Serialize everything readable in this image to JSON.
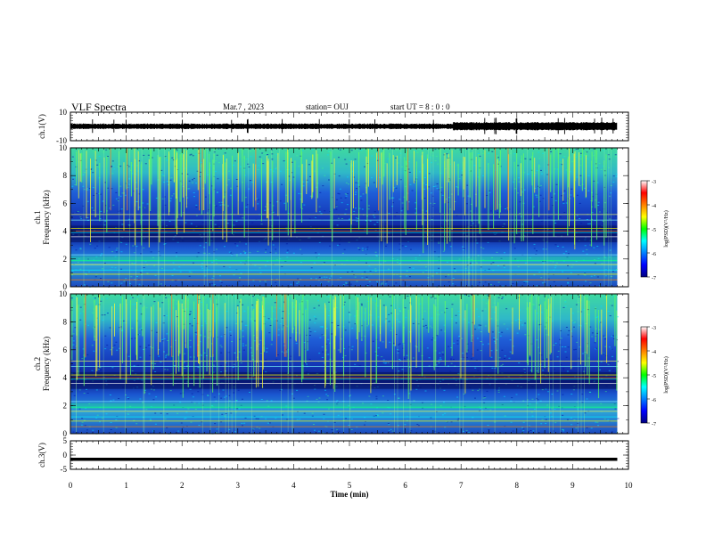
{
  "header": {
    "title": "VLF Spectra",
    "date": "Mar.7 , 2023",
    "station": "station= OUJ",
    "start_ut": "start  UT =  8 : 0  : 0"
  },
  "chart_data": [
    {
      "type": "line",
      "ylabel": "ch.1(V)",
      "ylim": [
        -10,
        10
      ],
      "y_ticks": [
        "10",
        "-10"
      ],
      "xlim": [
        0,
        10
      ],
      "x_range_data": [
        0,
        9.8
      ],
      "baseline": 0
    },
    {
      "type": "heatmap",
      "ylabel": "ch.1\nFrequency (kHz)",
      "ylabel_lines": [
        "ch.1",
        "Frequency (kHz)"
      ],
      "ylim": [
        0,
        10
      ],
      "y_ticks": [
        "0",
        "2",
        "4",
        "6",
        "8",
        "10"
      ],
      "xlim": [
        0,
        10
      ],
      "x_range_data": [
        0,
        9.8
      ],
      "colorbar": {
        "label": "log(PSD)(V²/Hz)",
        "range": [
          -7,
          -3
        ],
        "ticks": [
          "-3",
          "-4",
          "-5",
          "-6",
          "-7"
        ]
      }
    },
    {
      "type": "heatmap",
      "ylabel": "ch.2\nFrequency (kHz)",
      "ylabel_lines": [
        "ch.2",
        "Frequency (kHz)"
      ],
      "ylim": [
        0,
        10
      ],
      "y_ticks": [
        "0",
        "2",
        "4",
        "6",
        "8",
        "10"
      ],
      "xlim": [
        0,
        10
      ],
      "x_range_data": [
        0,
        9.8
      ],
      "colorbar": {
        "label": "log(PSD)(V²/Hz)",
        "range": [
          -7,
          -3
        ],
        "ticks": [
          "-3",
          "-4",
          "-5",
          "-6",
          "-7"
        ]
      }
    },
    {
      "type": "line",
      "ylabel": "ch.3(V)",
      "ylim": [
        -5,
        5
      ],
      "y_ticks": [
        "5",
        "0",
        "-5"
      ],
      "xlim": [
        0,
        10
      ],
      "x_range_data": [
        0,
        9.8
      ],
      "baseline": -1.5,
      "xlabel": "Time (min)",
      "x_ticks": [
        "0",
        "1",
        "2",
        "3",
        "4",
        "5",
        "6",
        "7",
        "8",
        "9",
        "10"
      ]
    }
  ]
}
